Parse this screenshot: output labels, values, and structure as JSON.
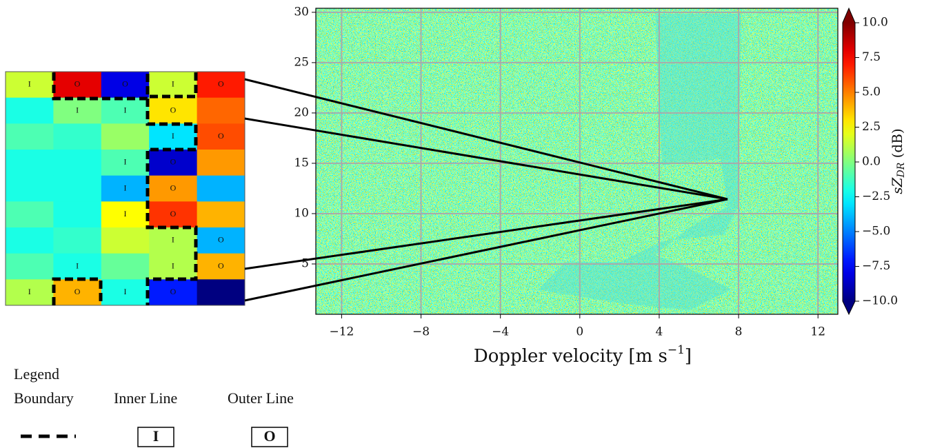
{
  "chart_data": {
    "type": "heatmap",
    "x_label": {
      "text": "Doppler velocity [m s",
      "sup": "−1",
      "end": "]"
    },
    "xlim": [
      -13.3,
      13
    ],
    "ylim": [
      0,
      30.4
    ],
    "xticks": [
      {
        "value": -12,
        "label": "−12"
      },
      {
        "value": -8,
        "label": "−8"
      },
      {
        "value": -4,
        "label": "−4"
      },
      0,
      4,
      8,
      12
    ],
    "yticks": [
      5,
      10,
      15,
      20,
      25,
      30
    ],
    "grid": true,
    "colorbar": {
      "label": {
        "s": "s",
        "z": "Z",
        "sub": "DR",
        "unit": " (dB)"
      },
      "lim": [
        -10,
        10
      ],
      "ticks": [
        {
          "value": 10,
          "label": "10.0"
        },
        {
          "value": 7.5,
          "label": "7.5"
        },
        {
          "value": 5,
          "label": "5.0"
        },
        {
          "value": 2.5,
          "label": "2.5"
        },
        {
          "value": 0,
          "label": "0.0"
        },
        {
          "value": -2.5,
          "label": "−2.5"
        },
        {
          "value": -5,
          "label": "−5.0"
        },
        {
          "value": -7.5,
          "label": "−7.5"
        },
        {
          "value": -10,
          "label": "−10.0"
        }
      ]
    }
  },
  "inset": {
    "values": [
      [
        1.5,
        8,
        -8,
        1.5,
        7
      ],
      [
        -2,
        0,
        -1,
        3,
        5.5
      ],
      [
        -1,
        -1.5,
        0.5,
        -3,
        6
      ],
      [
        -2,
        -2,
        -1,
        -8.5,
        4.5
      ],
      [
        -2,
        -2,
        -4,
        4.5,
        -4
      ],
      [
        -1,
        -2,
        2.5,
        6.5,
        4
      ],
      [
        -2,
        -1.5,
        1.5,
        1,
        -4
      ],
      [
        -1,
        -2,
        -0.5,
        1,
        4
      ],
      [
        1,
        4,
        -2,
        -7,
        -10
      ]
    ],
    "labels": [
      [
        "I",
        "O",
        "O",
        "I",
        "O"
      ],
      [
        null,
        "I",
        "I",
        "O",
        null
      ],
      [
        null,
        null,
        null,
        "I",
        "O"
      ],
      [
        null,
        null,
        "I",
        "O",
        null
      ],
      [
        null,
        null,
        "I",
        "O",
        null
      ],
      [
        null,
        null,
        "I",
        "O",
        null
      ],
      [
        null,
        null,
        null,
        "I",
        "O"
      ],
      [
        null,
        "I",
        null,
        "I",
        "O"
      ],
      [
        "I",
        "O",
        "I",
        "O",
        null
      ]
    ]
  },
  "legend": {
    "title": "Legend",
    "boundary": "Boundary",
    "inner": "Inner Line",
    "outer": "Outer Line",
    "inner_symbol": "I",
    "outer_symbol": "O"
  }
}
